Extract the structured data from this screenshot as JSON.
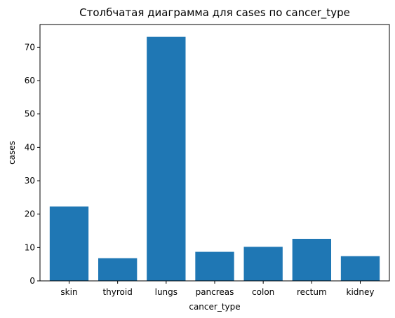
{
  "chart_data": {
    "type": "bar",
    "title": "Столбчатая диаграмма для cases по cancer_type",
    "xlabel": "cancer_type",
    "ylabel": "cases",
    "categories": [
      "skin",
      "thyroid",
      "lungs",
      "pancreas",
      "colon",
      "rectum",
      "kidney"
    ],
    "values": [
      22.3,
      6.8,
      73.1,
      8.7,
      10.2,
      12.6,
      7.4
    ],
    "ylim": [
      0,
      76.8
    ],
    "yticks": [
      0,
      10,
      20,
      30,
      40,
      50,
      60,
      70
    ],
    "grid": false,
    "bar_color": "#1f77b4"
  }
}
